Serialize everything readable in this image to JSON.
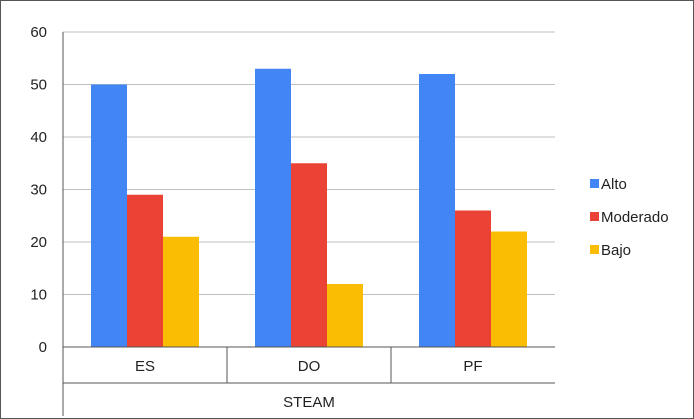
{
  "chart_data": {
    "type": "bar",
    "categories": [
      "ES",
      "DO",
      "PF"
    ],
    "group_label": "STEAM",
    "series": [
      {
        "name": "Alto",
        "color": "#4285f4",
        "values": [
          50,
          53,
          52
        ]
      },
      {
        "name": "Moderado",
        "color": "#ea4335",
        "values": [
          29,
          35,
          26
        ]
      },
      {
        "name": "Bajo",
        "color": "#fbbc04",
        "values": [
          21,
          12,
          22
        ]
      }
    ],
    "yticks": [
      "0",
      "10",
      "20",
      "30",
      "40",
      "50",
      "60"
    ],
    "ylim": [
      0,
      60
    ],
    "grid": true,
    "legend_position": "right"
  }
}
